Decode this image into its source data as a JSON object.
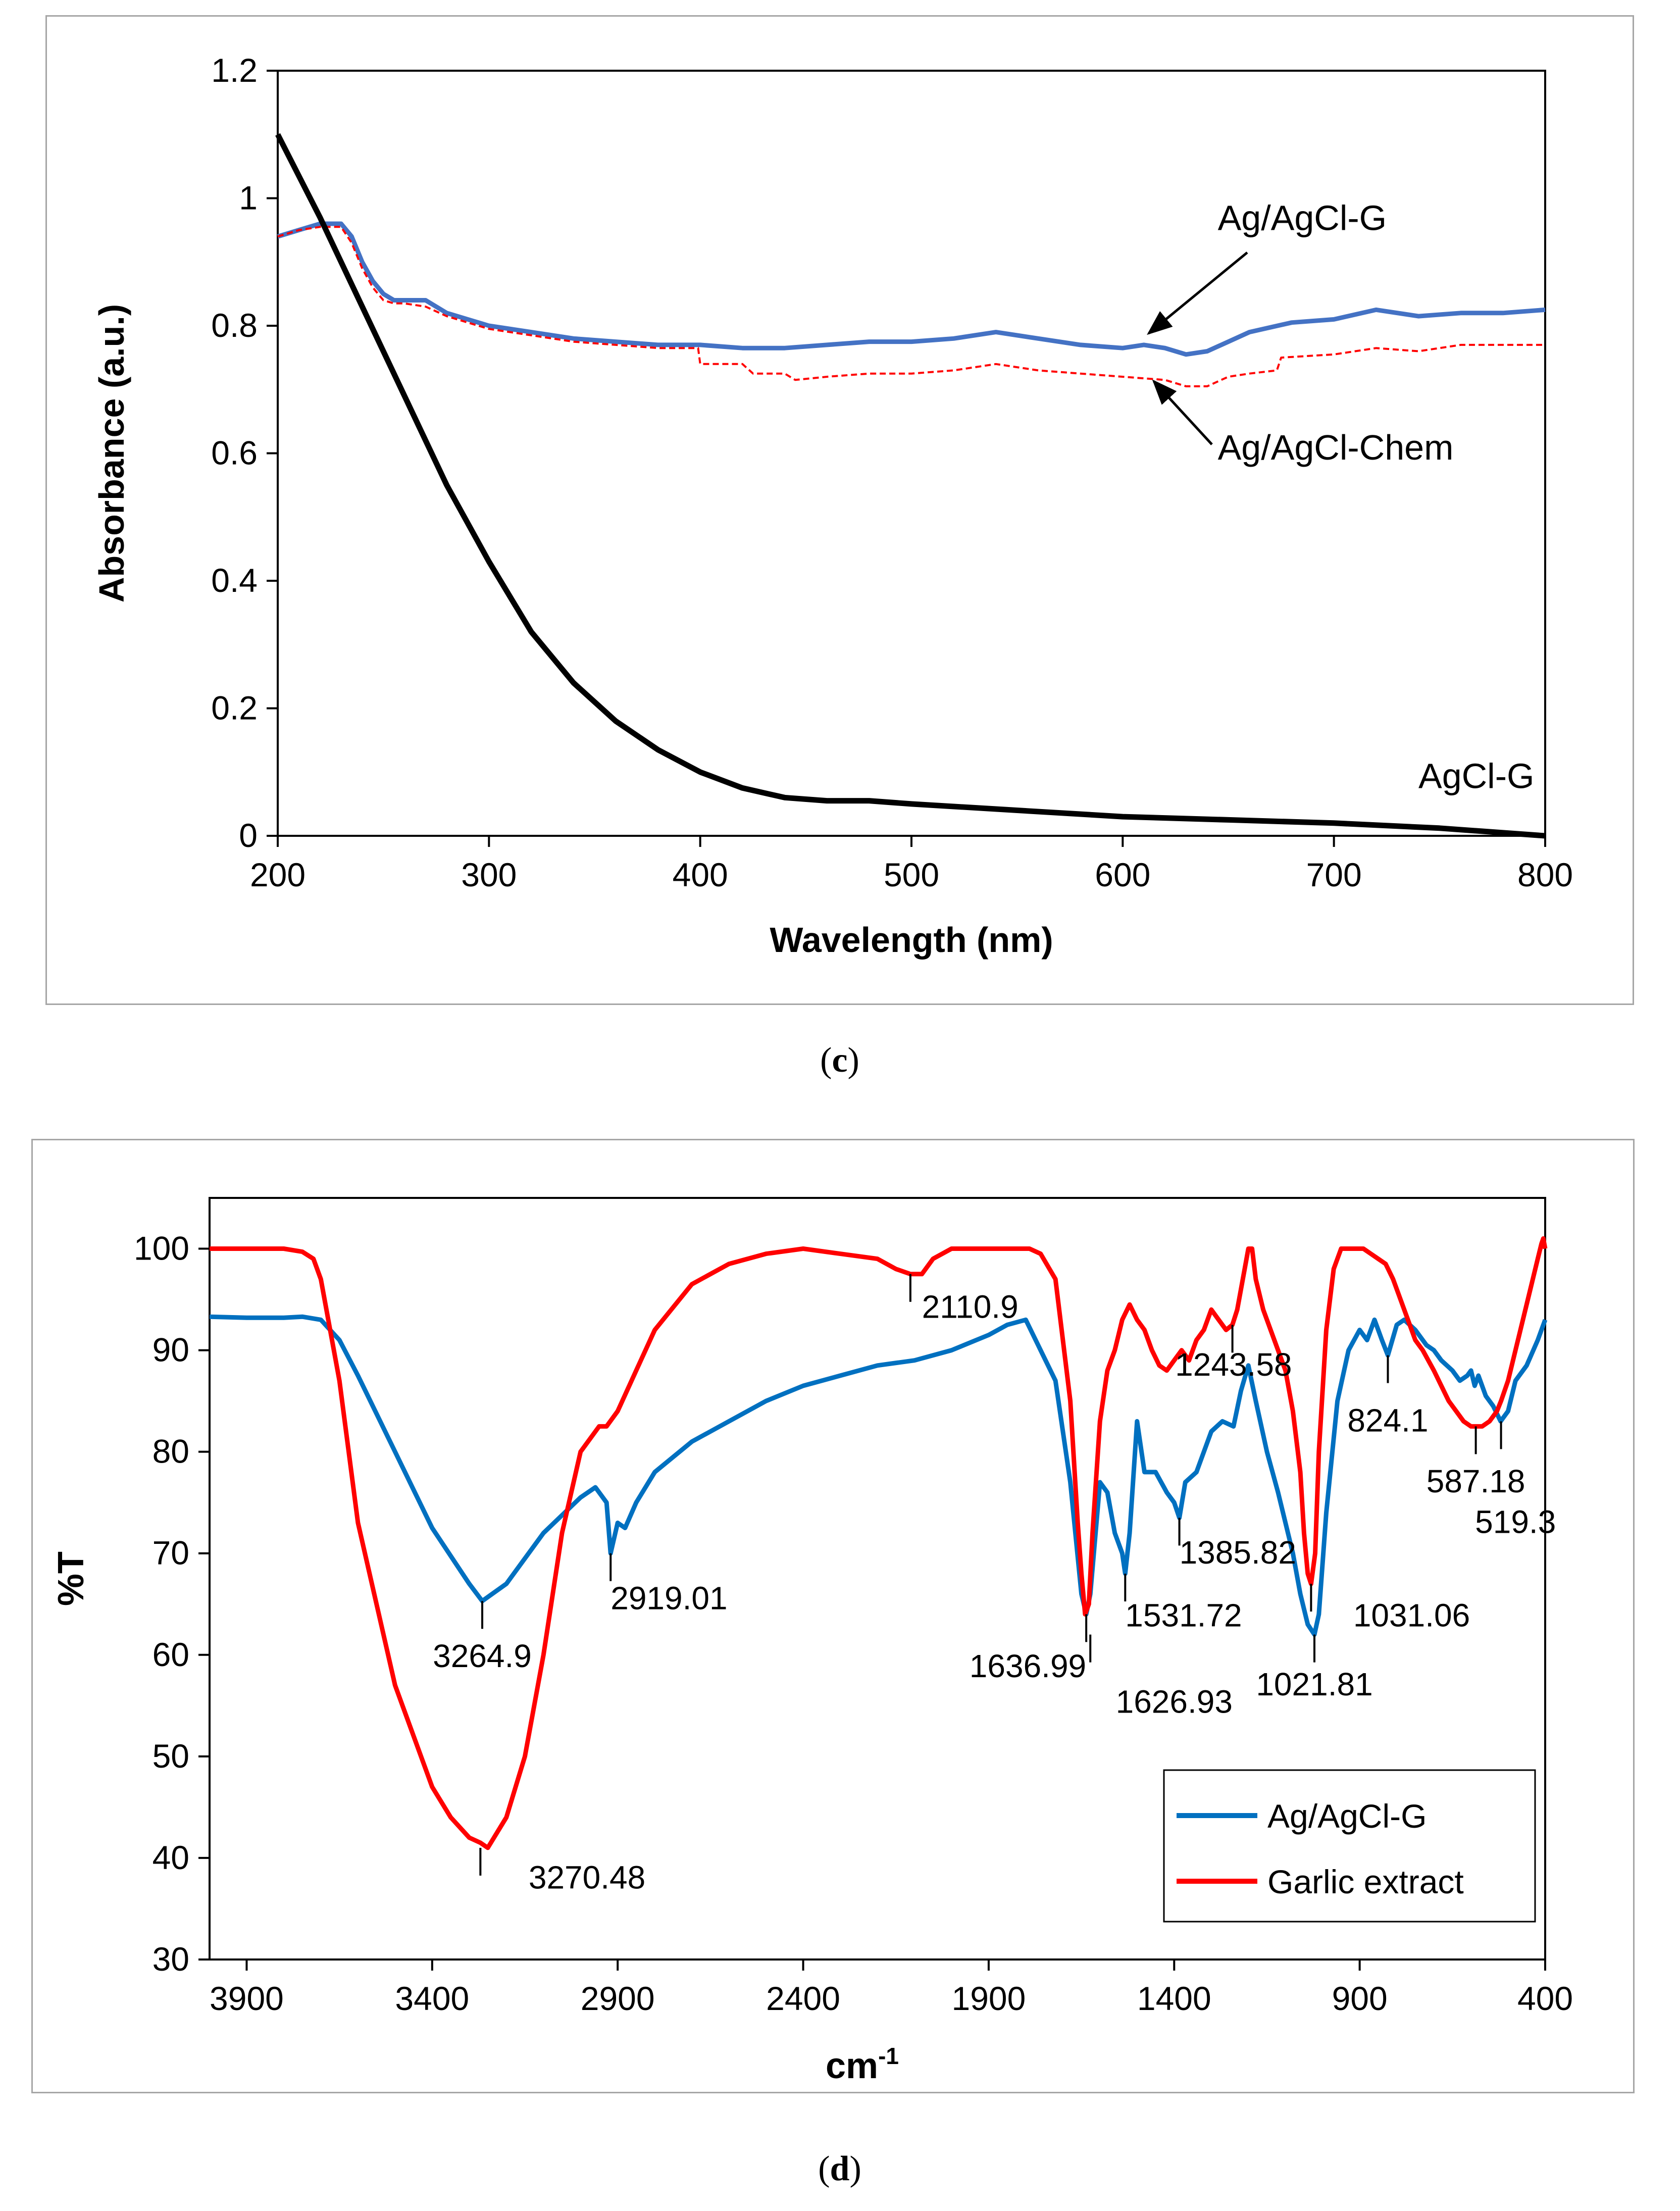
{
  "chart_data": [
    {
      "type": "line",
      "panel_label": "c",
      "xlabel": "Wavelength (nm)",
      "ylabel": "Absorbance (a.u.)",
      "xlim": [
        200,
        800
      ],
      "ylim": [
        0,
        1.2
      ],
      "x_ticks": [
        "200",
        "300",
        "400",
        "500",
        "600",
        "700",
        "800"
      ],
      "y_ticks": [
        "0",
        "0.2",
        "0.4",
        "0.6",
        "0.8",
        "1",
        "1.2"
      ],
      "grid": false,
      "series": [
        {
          "name": "Ag/AgCl-G",
          "color": "#4472c4",
          "style": "solid",
          "x": [
            200,
            210,
            220,
            230,
            235,
            240,
            245,
            250,
            255,
            260,
            270,
            280,
            290,
            300,
            320,
            340,
            360,
            380,
            400,
            420,
            440,
            460,
            480,
            500,
            520,
            540,
            560,
            580,
            600,
            610,
            620,
            630,
            640,
            650,
            660,
            680,
            700,
            720,
            740,
            760,
            780,
            800
          ],
          "y": [
            0.94,
            0.95,
            0.96,
            0.96,
            0.94,
            0.9,
            0.87,
            0.85,
            0.84,
            0.84,
            0.84,
            0.82,
            0.81,
            0.8,
            0.79,
            0.78,
            0.775,
            0.77,
            0.77,
            0.765,
            0.765,
            0.77,
            0.775,
            0.775,
            0.78,
            0.79,
            0.78,
            0.77,
            0.765,
            0.77,
            0.765,
            0.755,
            0.76,
            0.775,
            0.79,
            0.805,
            0.81,
            0.825,
            0.815,
            0.82,
            0.82,
            0.825
          ]
        },
        {
          "name": "Ag/AgCl-Chem",
          "color": "#ff0000",
          "style": "dashed",
          "x": [
            200,
            210,
            220,
            230,
            235,
            240,
            245,
            250,
            255,
            260,
            270,
            280,
            290,
            300,
            320,
            340,
            360,
            380,
            399,
            400,
            420,
            425,
            440,
            445,
            460,
            480,
            500,
            520,
            540,
            560,
            580,
            600,
            620,
            630,
            640,
            650,
            660,
            673,
            675,
            700,
            720,
            740,
            760,
            780,
            800
          ],
          "y": [
            0.94,
            0.95,
            0.955,
            0.955,
            0.93,
            0.89,
            0.86,
            0.84,
            0.835,
            0.835,
            0.83,
            0.815,
            0.805,
            0.795,
            0.785,
            0.775,
            0.77,
            0.765,
            0.765,
            0.74,
            0.74,
            0.725,
            0.725,
            0.715,
            0.72,
            0.725,
            0.725,
            0.73,
            0.74,
            0.73,
            0.725,
            0.72,
            0.715,
            0.705,
            0.705,
            0.72,
            0.725,
            0.73,
            0.75,
            0.755,
            0.765,
            0.76,
            0.77,
            0.77,
            0.77
          ]
        },
        {
          "name": "AgCl-G",
          "color": "#000000",
          "style": "solid",
          "x": [
            200,
            220,
            240,
            260,
            280,
            300,
            320,
            340,
            360,
            380,
            400,
            420,
            440,
            460,
            480,
            500,
            550,
            600,
            650,
            700,
            750,
            800
          ],
          "y": [
            1.1,
            0.97,
            0.83,
            0.69,
            0.55,
            0.43,
            0.32,
            0.24,
            0.18,
            0.135,
            0.1,
            0.075,
            0.06,
            0.055,
            0.055,
            0.05,
            0.04,
            0.03,
            0.025,
            0.02,
            0.012,
            0.0
          ]
        }
      ],
      "annotations": [
        {
          "text": "Ag/AgCl-G",
          "x": 645,
          "y": 0.95
        },
        {
          "text": "Ag/AgCl-Chem",
          "x": 645,
          "y": 0.59
        },
        {
          "text": "AgCl-G",
          "x": 740,
          "y": 0.075
        }
      ]
    },
    {
      "type": "line",
      "panel_label": "d",
      "xlabel": "cm",
      "xlabel_sup": "-1",
      "ylabel": "%T",
      "xlim": [
        4000,
        400
      ],
      "x_reversed": true,
      "ylim": [
        30,
        105
      ],
      "x_ticks": [
        "3900",
        "3400",
        "2900",
        "2400",
        "1900",
        "1400",
        "900",
        "400"
      ],
      "y_ticks": [
        "30",
        "40",
        "50",
        "60",
        "70",
        "80",
        "90",
        "100"
      ],
      "grid": false,
      "legend_position": "bottom-right",
      "series": [
        {
          "name": "Ag/AgCl-G",
          "color": "#0070c0",
          "x": [
            4000,
            3900,
            3800,
            3750,
            3700,
            3650,
            3600,
            3500,
            3400,
            3300,
            3265,
            3200,
            3100,
            3000,
            2960,
            2930,
            2919,
            2900,
            2880,
            2850,
            2800,
            2700,
            2600,
            2500,
            2400,
            2300,
            2200,
            2100,
            2000,
            1900,
            1850,
            1800,
            1760,
            1720,
            1680,
            1650,
            1637,
            1626,
            1600,
            1580,
            1560,
            1540,
            1532,
            1520,
            1500,
            1480,
            1450,
            1420,
            1400,
            1386,
            1370,
            1340,
            1300,
            1270,
            1240,
            1220,
            1200,
            1180,
            1150,
            1120,
            1080,
            1060,
            1040,
            1031,
            1022,
            1010,
            990,
            960,
            930,
            900,
            880,
            860,
            850,
            840,
            824,
            800,
            780,
            750,
            720,
            700,
            680,
            650,
            630,
            610,
            600,
            590,
            580,
            570,
            560,
            540,
            520,
            500,
            480,
            450,
            420,
            400
          ],
          "y": [
            93.3,
            93.2,
            93.2,
            93.3,
            93.0,
            91.0,
            87.5,
            80.0,
            72.5,
            67.0,
            65.3,
            67.0,
            72.0,
            75.5,
            76.5,
            75.0,
            70.0,
            73.0,
            72.5,
            75.0,
            78.0,
            81.0,
            83.0,
            85.0,
            86.5,
            87.5,
            88.5,
            89.0,
            90.0,
            91.5,
            92.5,
            93.0,
            90.0,
            87.0,
            77.0,
            66.0,
            64.0,
            66.0,
            77.0,
            76.0,
            72.0,
            70.0,
            68.0,
            72.0,
            83.0,
            78.0,
            78.0,
            76.0,
            75.0,
            73.5,
            77.0,
            78.0,
            82.0,
            83.0,
            82.5,
            86.0,
            88.5,
            85.0,
            80.0,
            76.0,
            70.0,
            66.0,
            63.0,
            62.5,
            62.0,
            64.0,
            74.0,
            85.0,
            90.0,
            92.0,
            91.0,
            93.0,
            92.0,
            91.0,
            89.5,
            92.5,
            93.0,
            92.0,
            90.5,
            90.0,
            89.0,
            88.0,
            87.0,
            87.5,
            88.0,
            86.5,
            87.5,
            86.5,
            85.5,
            84.5,
            83.0,
            84.0,
            87.0,
            88.5,
            91.0,
            93.0
          ]
        },
        {
          "name": "Garlic extract",
          "color": "#ff0000",
          "x": [
            4000,
            3900,
            3800,
            3750,
            3720,
            3700,
            3650,
            3600,
            3500,
            3400,
            3350,
            3300,
            3270,
            3250,
            3200,
            3150,
            3100,
            3050,
            3000,
            2950,
            2930,
            2900,
            2850,
            2800,
            2700,
            2600,
            2500,
            2400,
            2300,
            2200,
            2150,
            2111,
            2080,
            2050,
            2000,
            1900,
            1850,
            1820,
            1790,
            1760,
            1720,
            1680,
            1660,
            1650,
            1640,
            1630,
            1620,
            1600,
            1580,
            1560,
            1540,
            1520,
            1500,
            1480,
            1460,
            1440,
            1420,
            1400,
            1380,
            1360,
            1340,
            1320,
            1300,
            1280,
            1260,
            1243,
            1230,
            1210,
            1200,
            1190,
            1180,
            1160,
            1140,
            1120,
            1100,
            1080,
            1060,
            1050,
            1040,
            1031,
            1020,
            1010,
            990,
            970,
            950,
            930,
            910,
            890,
            870,
            850,
            830,
            810,
            790,
            770,
            750,
            730,
            700,
            680,
            660,
            640,
            620,
            600,
            587,
            570,
            550,
            530,
            519,
            500,
            480,
            460,
            440,
            420,
            410,
            405,
            400
          ],
          "y": [
            100.0,
            100.0,
            100.0,
            99.7,
            99.0,
            97.0,
            87.0,
            73.0,
            57.0,
            47.0,
            44.0,
            42.0,
            41.5,
            41.0,
            44.0,
            50.0,
            60.0,
            72.0,
            80.0,
            82.5,
            82.5,
            84.0,
            88.0,
            92.0,
            96.5,
            98.5,
            99.5,
            100.0,
            99.5,
            99.0,
            98.0,
            97.5,
            97.5,
            99.0,
            100.0,
            100.0,
            100.0,
            100.0,
            100.0,
            99.5,
            97.0,
            85.0,
            73.0,
            68.0,
            64.0,
            65.0,
            72.0,
            83.0,
            88.0,
            90.0,
            93.0,
            94.5,
            93.0,
            92.0,
            90.0,
            88.5,
            88.0,
            89.0,
            90.0,
            89.0,
            91.0,
            92.0,
            94.0,
            93.0,
            92.0,
            92.5,
            94.0,
            98.0,
            100.0,
            100.0,
            97.0,
            94.0,
            92.0,
            90.0,
            88.0,
            84.0,
            78.0,
            72.0,
            68.0,
            67.0,
            70.0,
            80.0,
            92.0,
            98.0,
            100.0,
            100.0,
            100.0,
            100.0,
            99.5,
            99.0,
            98.5,
            97.0,
            95.0,
            93.0,
            91.0,
            90.0,
            88.0,
            86.5,
            85.0,
            84.0,
            83.0,
            82.5,
            82.5,
            82.5,
            83.0,
            84.0,
            85.0,
            87.0,
            90.0,
            93.0,
            96.0,
            99.0,
            100.5,
            101.0,
            100.0
          ]
        }
      ],
      "peak_labels": [
        {
          "text": "2110.9",
          "x": 2111,
          "y": 97.5,
          "label_x": 2080,
          "label_y": 93.2,
          "anchor": "start"
        },
        {
          "text": "3264.9",
          "x": 3265,
          "y": 65.3,
          "label_x": 3265,
          "label_y": 58.8,
          "anchor": "middle"
        },
        {
          "text": "2919.01",
          "x": 2919,
          "y": 70.0,
          "label_x": 2919,
          "label_y": 64.5,
          "anchor": "start"
        },
        {
          "text": "3270.48",
          "x": 3270,
          "y": 41.0,
          "label_x": 3140,
          "label_y": 37.0,
          "anchor": "start"
        },
        {
          "text": "1243.58",
          "x": 1243,
          "y": 92.5,
          "label_x": 1240,
          "label_y": 87.5,
          "anchor": "middle"
        },
        {
          "text": "824.1",
          "x": 824,
          "y": 89.5,
          "label_x": 824,
          "label_y": 82.0,
          "anchor": "middle"
        },
        {
          "text": "587.18",
          "x": 587,
          "y": 82.5,
          "label_x": 587,
          "label_y": 76.0,
          "anchor": "middle"
        },
        {
          "text": "519.3",
          "x": 519,
          "y": 83.0,
          "label_x": 480,
          "label_y": 72.0,
          "anchor": "middle"
        },
        {
          "text": "1385.82",
          "x": 1386,
          "y": 73.5,
          "label_x": 1386,
          "label_y": 69.0,
          "anchor": "start"
        },
        {
          "text": "1531.72",
          "x": 1532,
          "y": 68.0,
          "label_x": 1532,
          "label_y": 62.8,
          "anchor": "start"
        },
        {
          "text": "1636.99",
          "x": 1637,
          "y": 64.0,
          "label_x": 1637,
          "label_y": 57.8,
          "anchor": "end"
        },
        {
          "text": "1626.93",
          "x": 1626,
          "y": 62.0,
          "label_x": 1400,
          "label_y": 54.3,
          "anchor": "middle"
        },
        {
          "text": "1031.06",
          "x": 1031,
          "y": 67.0,
          "label_x": 760,
          "label_y": 62.8,
          "anchor": "middle"
        },
        {
          "text": "1021.81",
          "x": 1022,
          "y": 62.0,
          "label_x": 1022,
          "label_y": 56.0,
          "anchor": "middle"
        }
      ]
    }
  ],
  "captions": {
    "c": "c",
    "d": "d"
  }
}
